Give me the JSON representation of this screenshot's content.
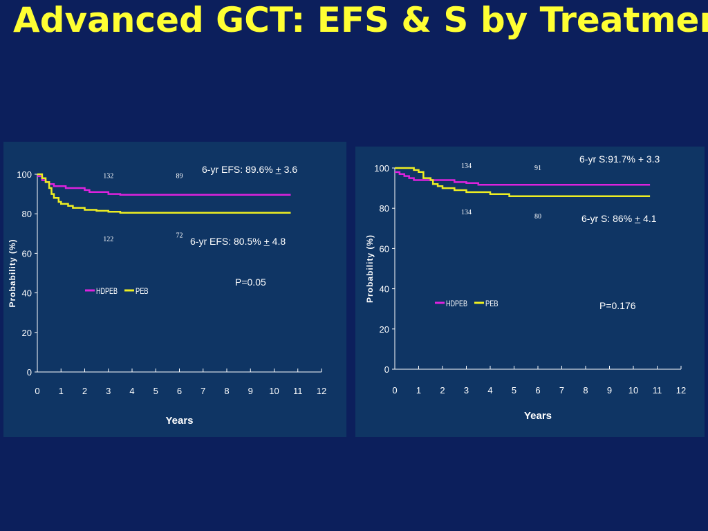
{
  "title": "Advanced GCT: EFS & S by Treatment",
  "colors": {
    "background": "#0c1f5c",
    "panel": "#0f3564",
    "title": "#ffff33",
    "hdpeb": "#dd22dd",
    "peb": "#eeee22"
  },
  "chart_data": [
    {
      "type": "line",
      "xlabel": "Years",
      "ylabel": "Probability (%)",
      "xlim": [
        0,
        12
      ],
      "ylim": [
        0,
        100
      ],
      "x_ticks": [
        "0",
        "1",
        "2",
        "3",
        "4",
        "5",
        "6",
        "7",
        "8",
        "9",
        "10",
        "11",
        "12"
      ],
      "y_ticks": [
        "0",
        "20",
        "40",
        "60",
        "80",
        "100"
      ],
      "legend": "center-left",
      "series": [
        {
          "name": "HDPEB",
          "color": "#dd22dd",
          "x": [
            0,
            0.2,
            0.35,
            0.5,
            0.7,
            1.0,
            1.2,
            1.5,
            2.0,
            2.2,
            2.5,
            3.0,
            3.5,
            4.0,
            5.0,
            6.0,
            7.0,
            8.0,
            9.0,
            10.0,
            10.7
          ],
          "y": [
            99,
            97,
            96,
            95,
            94,
            94,
            93,
            93,
            92,
            91,
            91,
            90,
            89.6,
            89.6,
            89.6,
            89.6,
            89.6,
            89.6,
            89.6,
            89.6,
            89.6
          ]
        },
        {
          "name": "PEB",
          "color": "#eeee22",
          "x": [
            0,
            0.2,
            0.35,
            0.5,
            0.6,
            0.7,
            0.9,
            1.0,
            1.2,
            1.3,
            1.5,
            2.0,
            2.5,
            3.0,
            3.5,
            4.0,
            5.0,
            6.0,
            7.0,
            8.0,
            9.0,
            10.0,
            10.7
          ],
          "y": [
            100,
            98,
            96,
            93,
            90,
            88,
            86,
            85,
            85,
            84,
            83,
            82,
            81.5,
            81,
            80.5,
            80.5,
            80.5,
            80.5,
            80.5,
            80.5,
            80.5,
            80.5,
            80.5
          ]
        }
      ],
      "risk_labels": [
        {
          "text": "132",
          "x": 3,
          "y": 98
        },
        {
          "text": "89",
          "x": 6,
          "y": 98
        },
        {
          "text": "122",
          "x": 3,
          "y": 66
        },
        {
          "text": "72",
          "x": 6,
          "y": 68
        }
      ],
      "annotations": [
        {
          "pre": "6-yr EFS: 89.6% ",
          "pm": "+",
          "post": " 3.6"
        },
        {
          "pre": "6-yr EFS: 80.5% ",
          "pm": "+",
          "post": " 4.8"
        },
        {
          "pre": "P=0.05",
          "pm": "",
          "post": ""
        }
      ]
    },
    {
      "type": "line",
      "xlabel": "Years",
      "ylabel": "Probability (%)",
      "xlim": [
        0,
        12
      ],
      "ylim": [
        0,
        100
      ],
      "x_ticks": [
        "0",
        "1",
        "2",
        "3",
        "4",
        "5",
        "6",
        "7",
        "8",
        "9",
        "10",
        "11",
        "12"
      ],
      "y_ticks": [
        "0",
        "20",
        "40",
        "60",
        "80",
        "100"
      ],
      "legend": "center-left",
      "series": [
        {
          "name": "HDPEB",
          "color": "#dd22dd",
          "x": [
            0,
            0.2,
            0.4,
            0.6,
            0.8,
            1.0,
            1.2,
            1.5,
            2.0,
            2.5,
            3.0,
            3.5,
            4.0,
            5.0,
            6.0,
            7.0,
            8.0,
            9.0,
            10.0,
            10.7
          ],
          "y": [
            98,
            97,
            96,
            95,
            94,
            94,
            94,
            94,
            94,
            93,
            92.5,
            91.7,
            91.7,
            91.7,
            91.7,
            91.7,
            91.7,
            91.7,
            91.7,
            91.7
          ]
        },
        {
          "name": "PEB",
          "color": "#eeee22",
          "x": [
            0,
            0.6,
            0.8,
            1.0,
            1.2,
            1.5,
            1.6,
            1.8,
            2.0,
            2.5,
            3.0,
            3.5,
            4.0,
            4.8,
            5.0,
            6.0,
            7.0,
            8.0,
            9.0,
            10.0,
            10.7
          ],
          "y": [
            100,
            100,
            99,
            98,
            95,
            94,
            92,
            91,
            90,
            89,
            88,
            88,
            87,
            86,
            86,
            86,
            86,
            86,
            86,
            86,
            86
          ]
        }
      ],
      "risk_labels": [
        {
          "text": "134",
          "x": 3,
          "y": 100
        },
        {
          "text": "91",
          "x": 6,
          "y": 99
        },
        {
          "text": "134",
          "x": 3,
          "y": 77
        },
        {
          "text": "80",
          "x": 6,
          "y": 75
        }
      ],
      "annotations": [
        {
          "pre": "6-yr S:91.7% + 3.3",
          "pm": "",
          "post": ""
        },
        {
          "pre": "6-yr S: 86% ",
          "pm": "+",
          "post": " 4.1"
        },
        {
          "pre": "P=0.176",
          "pm": "",
          "post": ""
        }
      ]
    }
  ]
}
